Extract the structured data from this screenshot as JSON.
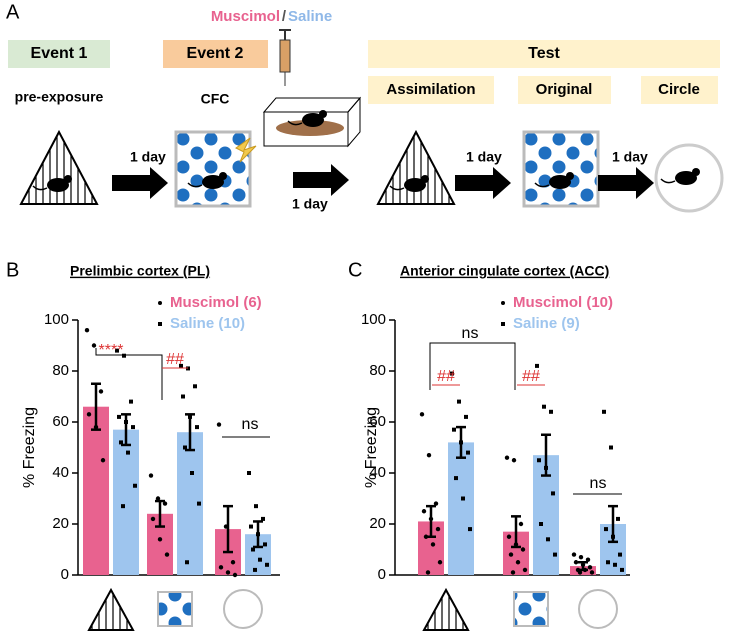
{
  "diagram": {
    "panel_label": "A",
    "event1": "Event 1",
    "event2": "Event 2",
    "drug_a": "Muscimol",
    "drug_sep": "/",
    "drug_b": "Saline",
    "test": "Test",
    "pre_exposure": "pre-exposure",
    "cfc": "CFC",
    "assimilation": "Assimilation",
    "original": "Original",
    "circle": "Circle",
    "interval": "1 day"
  },
  "chart_data": [
    {
      "type": "bar",
      "panel_label": "B",
      "title": "Prelimbic cortex (PL)",
      "y_label": "% Freezing",
      "categories": [
        null,
        null,
        null
      ],
      "series": [
        {
          "name": "Muscimol (6)",
          "color": "#e8628f",
          "values": [
            66,
            24,
            18
          ],
          "errors": [
            9,
            5,
            9
          ],
          "points": [
            [
              96,
              90,
              72,
              63,
              58,
              45
            ],
            [
              39,
              30,
              28,
              22,
              14,
              8
            ],
            [
              59,
              19,
              5,
              3,
              1,
              0
            ]
          ]
        },
        {
          "name": "Saline (10)",
          "color": "#9ec5ee",
          "values": [
            57,
            56,
            16
          ],
          "errors": [
            6,
            7,
            5
          ],
          "points": [
            [
              88,
              86,
              68,
              62,
              60,
              58,
              52,
              48,
              35,
              27
            ],
            [
              82,
              81,
              74,
              70,
              62,
              58,
              50,
              40,
              28,
              5
            ],
            [
              40,
              27,
              22,
              19,
              16,
              12,
              10,
              6,
              4,
              2
            ]
          ]
        }
      ],
      "ylim": [
        0,
        100
      ],
      "yticks": [
        0,
        20,
        40,
        60,
        80,
        100
      ],
      "annotations": [
        "****",
        "##",
        "ns"
      ]
    },
    {
      "type": "bar",
      "panel_label": "C",
      "title": "Anterior cingulate cortex (ACC)",
      "y_label": "% Freezing",
      "categories": [
        null,
        null,
        null
      ],
      "series": [
        {
          "name": "Muscimol (10)",
          "color": "#e8628f",
          "values": [
            21,
            17,
            3.5
          ],
          "errors": [
            6,
            6,
            1.5
          ],
          "points": [
            [
              63,
              47,
              28,
              25,
              22,
              18,
              15,
              12,
              5,
              1
            ],
            [
              46,
              45,
              20,
              15,
              12,
              10,
              8,
              5,
              2,
              1
            ],
            [
              8,
              7,
              6,
              5,
              4,
              3,
              2,
              2,
              1,
              1
            ]
          ]
        },
        {
          "name": "Saline (9)",
          "color": "#9ec5ee",
          "values": [
            52,
            47,
            20
          ],
          "errors": [
            6,
            8,
            7
          ],
          "points": [
            [
              79,
              68,
              62,
              57,
              52,
              48,
              38,
              30,
              18
            ],
            [
              82,
              66,
              64,
              45,
              42,
              32,
              20,
              14,
              8
            ],
            [
              64,
              50,
              22,
              18,
              15,
              8,
              5,
              4,
              2
            ]
          ]
        }
      ],
      "ylim": [
        0,
        100
      ],
      "yticks": [
        0,
        20,
        40,
        60,
        80,
        100
      ],
      "annotations": [
        "ns",
        "##",
        "##",
        "ns"
      ]
    }
  ]
}
